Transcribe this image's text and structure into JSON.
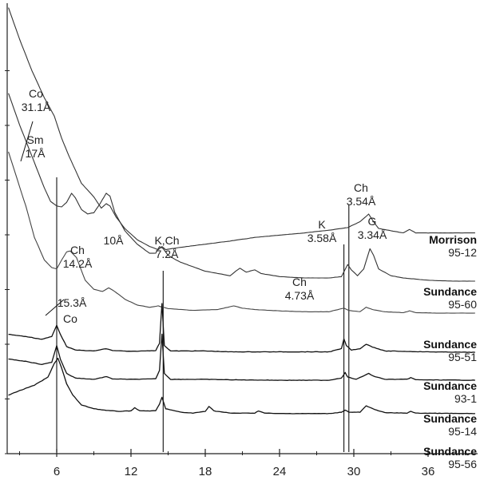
{
  "chart_data": {
    "type": "line",
    "title": "",
    "xlabel": "",
    "ylabel": "",
    "xlim": [
      2,
      40
    ],
    "x_ticks": [
      6,
      12,
      18,
      24,
      30,
      36
    ],
    "grid": false,
    "legend": "none",
    "y_units": "arbitrary intensity (0 = bottom of plot, 100 = top)",
    "series": [
      {
        "name": "Morrison",
        "sample": "95-12",
        "color": "#333333",
        "points": [
          [
            2.1,
            99
          ],
          [
            3,
            92
          ],
          [
            4,
            85
          ],
          [
            5,
            79
          ],
          [
            5.8,
            75
          ],
          [
            6.4,
            70
          ],
          [
            7,
            66
          ],
          [
            8,
            60
          ],
          [
            9,
            57
          ],
          [
            9.6,
            54.5
          ],
          [
            10,
            55.5
          ],
          [
            10.3,
            55
          ],
          [
            10.8,
            52.5
          ],
          [
            11.5,
            50
          ],
          [
            12.5,
            47.5
          ],
          [
            13.5,
            46
          ],
          [
            14.2,
            45.3
          ],
          [
            14.5,
            46
          ],
          [
            14.8,
            45.3
          ],
          [
            16,
            45.8
          ],
          [
            18,
            46.5
          ],
          [
            20,
            47.2
          ],
          [
            22,
            48
          ],
          [
            24,
            48.5
          ],
          [
            26,
            49
          ],
          [
            28,
            49.6
          ],
          [
            29.5,
            50.2
          ],
          [
            30.5,
            51.5
          ],
          [
            31.2,
            53.2
          ],
          [
            31.6,
            51.5
          ],
          [
            32,
            50
          ],
          [
            33,
            49.5
          ],
          [
            34,
            49
          ],
          [
            34.5,
            49.8
          ],
          [
            35,
            49
          ],
          [
            36,
            49
          ],
          [
            38,
            49
          ],
          [
            39.8,
            49
          ]
        ]
      },
      {
        "name": "Sundance",
        "sample": "95-60",
        "color": "#333333",
        "points": [
          [
            2.1,
            80
          ],
          [
            3,
            73
          ],
          [
            4,
            66
          ],
          [
            5,
            59
          ],
          [
            5.5,
            56
          ],
          [
            6,
            55
          ],
          [
            6.4,
            54.8
          ],
          [
            6.8,
            55.8
          ],
          [
            7.2,
            57.8
          ],
          [
            7.5,
            56.8
          ],
          [
            8,
            54.2
          ],
          [
            8.5,
            53.2
          ],
          [
            9,
            53.5
          ],
          [
            9.5,
            55.5
          ],
          [
            10,
            57.8
          ],
          [
            10.3,
            57.2
          ],
          [
            10.7,
            53.5
          ],
          [
            11.5,
            49.5
          ],
          [
            12.5,
            46.5
          ],
          [
            13.5,
            44.5
          ],
          [
            14.0,
            44.5
          ],
          [
            14.3,
            46
          ],
          [
            14.6,
            45.5
          ],
          [
            15,
            44
          ],
          [
            16,
            42.5
          ],
          [
            18,
            40.5
          ],
          [
            20,
            39.5
          ],
          [
            20.8,
            41.2
          ],
          [
            21.3,
            40.3
          ],
          [
            22,
            40.8
          ],
          [
            22.5,
            40
          ],
          [
            24,
            39.3
          ],
          [
            26,
            39
          ],
          [
            28,
            39
          ],
          [
            29,
            39.3
          ],
          [
            29.5,
            42
          ],
          [
            29.8,
            40.8
          ],
          [
            30.3,
            39.5
          ],
          [
            30.8,
            41
          ],
          [
            31.3,
            45.5
          ],
          [
            31.6,
            44
          ],
          [
            32,
            41
          ],
          [
            33,
            39.5
          ],
          [
            34,
            39
          ],
          [
            36,
            38.5
          ],
          [
            38,
            38.3
          ],
          [
            39.8,
            38.3
          ]
        ]
      },
      {
        "name": "Sundance",
        "sample": "95-51",
        "color": "#444444",
        "points": [
          [
            2.1,
            67
          ],
          [
            2.8,
            61
          ],
          [
            3.5,
            55
          ],
          [
            4.2,
            48
          ],
          [
            5,
            43
          ],
          [
            5.6,
            41.3
          ],
          [
            6,
            41
          ],
          [
            6.4,
            43
          ],
          [
            6.8,
            44.8
          ],
          [
            7.1,
            45
          ],
          [
            7.6,
            43.5
          ],
          [
            8.3,
            38.5
          ],
          [
            9,
            36.5
          ],
          [
            9.7,
            36
          ],
          [
            10.2,
            36.8
          ],
          [
            10.7,
            36
          ],
          [
            11.5,
            34.3
          ],
          [
            12.5,
            33
          ],
          [
            13.5,
            32.5
          ],
          [
            14.2,
            32.8
          ],
          [
            15,
            32.2
          ],
          [
            17,
            31.8
          ],
          [
            19,
            32
          ],
          [
            20.3,
            32.8
          ],
          [
            21,
            32.3
          ],
          [
            22,
            32
          ],
          [
            24,
            31.7
          ],
          [
            26,
            31.5
          ],
          [
            28,
            31.5
          ],
          [
            29.2,
            32.3
          ],
          [
            29.6,
            31.8
          ],
          [
            30.5,
            31.5
          ],
          [
            31,
            32.5
          ],
          [
            31.5,
            32
          ],
          [
            32.5,
            31.5
          ],
          [
            34,
            31.3
          ],
          [
            34.5,
            31.7
          ],
          [
            35,
            31.3
          ],
          [
            37,
            31.2
          ],
          [
            39.8,
            31.2
          ]
        ]
      },
      {
        "name": "Sundance",
        "sample": "93-1",
        "color": "#111111",
        "points": [
          [
            2.1,
            26.5
          ],
          [
            3.5,
            26
          ],
          [
            4.8,
            25.4
          ],
          [
            5.6,
            26
          ],
          [
            6,
            28.5
          ],
          [
            6.3,
            26.5
          ],
          [
            6.8,
            23.8
          ],
          [
            7.5,
            23
          ],
          [
            9,
            22.8
          ],
          [
            10,
            23.3
          ],
          [
            10.5,
            22.9
          ],
          [
            12,
            22.7
          ],
          [
            14,
            22.9
          ],
          [
            14.3,
            24.5
          ],
          [
            14.5,
            33.3
          ],
          [
            14.7,
            24
          ],
          [
            15.2,
            22.8
          ],
          [
            18,
            22.8
          ],
          [
            20,
            22.6
          ],
          [
            24,
            22.6
          ],
          [
            28,
            22.6
          ],
          [
            29,
            23.3
          ],
          [
            29.2,
            25.5
          ],
          [
            29.4,
            24
          ],
          [
            29.8,
            23
          ],
          [
            30.5,
            23.3
          ],
          [
            31,
            24.3
          ],
          [
            31.5,
            23.7
          ],
          [
            32.5,
            22.8
          ],
          [
            36,
            22.6
          ],
          [
            39.8,
            22.5
          ]
        ]
      },
      {
        "name": "Sundance",
        "sample": "95-14",
        "color": "#111111",
        "points": [
          [
            2.1,
            21
          ],
          [
            3.5,
            20.5
          ],
          [
            4.8,
            19.8
          ],
          [
            5.6,
            20.3
          ],
          [
            6,
            24
          ],
          [
            6.3,
            21
          ],
          [
            6.8,
            17.8
          ],
          [
            7.5,
            16.8
          ],
          [
            9,
            16.5
          ],
          [
            10,
            17.1
          ],
          [
            10.5,
            16.6
          ],
          [
            12,
            16.5
          ],
          [
            14,
            16.6
          ],
          [
            14.3,
            18.5
          ],
          [
            14.5,
            26.5
          ],
          [
            14.7,
            17.8
          ],
          [
            15.2,
            16.5
          ],
          [
            18,
            16.5
          ],
          [
            20,
            16.4
          ],
          [
            24,
            16.3
          ],
          [
            28,
            16.3
          ],
          [
            29,
            16.8
          ],
          [
            29.3,
            18
          ],
          [
            29.5,
            17
          ],
          [
            30.2,
            16.5
          ],
          [
            30.8,
            17.3
          ],
          [
            31.2,
            17.8
          ],
          [
            31.6,
            17.2
          ],
          [
            32.5,
            16.5
          ],
          [
            34.3,
            16.5
          ],
          [
            34.6,
            16.9
          ],
          [
            35,
            16.4
          ],
          [
            39.8,
            16.3
          ]
        ]
      },
      {
        "name": "Sundance",
        "sample": "95-56",
        "color": "#111111",
        "points": [
          [
            2.1,
            13
          ],
          [
            3,
            14
          ],
          [
            4.2,
            15.2
          ],
          [
            5.3,
            17
          ],
          [
            5.8,
            20
          ],
          [
            6.1,
            21.2
          ],
          [
            6.4,
            19
          ],
          [
            6.8,
            15.5
          ],
          [
            7.3,
            13
          ],
          [
            8,
            10.8
          ],
          [
            9,
            10
          ],
          [
            10,
            9.6
          ],
          [
            11,
            9.4
          ],
          [
            12,
            9.5
          ],
          [
            12.3,
            10.2
          ],
          [
            12.7,
            9.5
          ],
          [
            14,
            9.5
          ],
          [
            14.3,
            11
          ],
          [
            14.5,
            12.5
          ],
          [
            14.8,
            10
          ],
          [
            16,
            9.2
          ],
          [
            17,
            9
          ],
          [
            18,
            9.4
          ],
          [
            18.3,
            10.5
          ],
          [
            18.7,
            9.5
          ],
          [
            20,
            9
          ],
          [
            22,
            9
          ],
          [
            22.3,
            9.5
          ],
          [
            22.8,
            9
          ],
          [
            24,
            8.9
          ],
          [
            26,
            8.9
          ],
          [
            28,
            8.9
          ],
          [
            29,
            9.2
          ],
          [
            29.3,
            9.7
          ],
          [
            29.6,
            9.2
          ],
          [
            30.5,
            9.2
          ],
          [
            31,
            10.6
          ],
          [
            31.5,
            10
          ],
          [
            32.5,
            9.1
          ],
          [
            34.3,
            9
          ],
          [
            34.6,
            9.4
          ],
          [
            35,
            9
          ],
          [
            39.8,
            8.9
          ]
        ]
      }
    ],
    "annotations": [
      {
        "lines": [
          "Co",
          "31.1Å"
        ]
      },
      {
        "lines": [
          "Sm",
          "17Å"
        ]
      },
      {
        "lines": [
          "Ch",
          "14.2Å"
        ]
      },
      {
        "lines": [
          "10Å"
        ]
      },
      {
        "lines": [
          "K,Ch",
          "7.2Å"
        ]
      },
      {
        "lines": [
          "15.3Å"
        ]
      },
      {
        "lines": [
          "Co"
        ]
      },
      {
        "lines": [
          "Ch",
          "4.73Å"
        ]
      },
      {
        "lines": [
          "K",
          "3.58Å"
        ]
      },
      {
        "lines": [
          "Ch",
          "3.54Å"
        ]
      },
      {
        "lines": [
          "G",
          "3.34Å"
        ]
      }
    ],
    "reference_lines_x": [
      6.0,
      14.6,
      29.2,
      29.6
    ],
    "labels": [
      {
        "name": "Morrison",
        "sample": "95-12"
      },
      {
        "name": "Sundance",
        "sample": "95-60"
      },
      {
        "name": "Sundance",
        "sample": "95-51"
      },
      {
        "name": "Sundance",
        "sample": "93-1"
      },
      {
        "name": "Sundance",
        "sample": "95-14"
      },
      {
        "name": "Sundance",
        "sample": "95-56"
      }
    ]
  }
}
